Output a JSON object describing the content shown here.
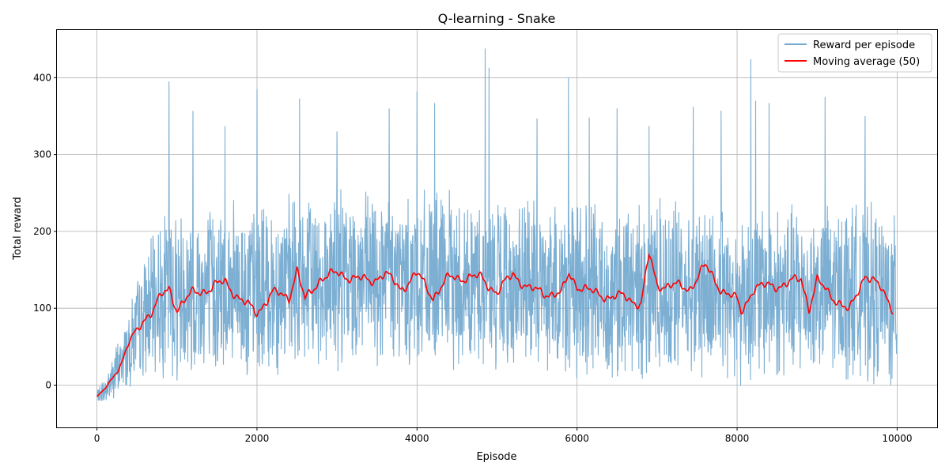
{
  "chart_data": {
    "type": "line",
    "title": "Q-learning - Snake",
    "xlabel": "Episode",
    "ylabel": "Total reward",
    "xlim": [
      -500,
      10500
    ],
    "ylim": [
      -55,
      462
    ],
    "xticks": [
      0,
      2000,
      4000,
      6000,
      8000,
      10000
    ],
    "yticks": [
      0,
      100,
      200,
      300,
      400
    ],
    "xtick_labels": [
      "0",
      "2000",
      "4000",
      "6000",
      "8000",
      "10000"
    ],
    "ytick_labels": [
      "0",
      "100",
      "200",
      "300",
      "400"
    ],
    "grid": true,
    "legend": "top-right",
    "series": [
      {
        "name": "Reward per episode",
        "color": "#76abd1",
        "n_points": 10000,
        "trend": {
          "x": [
            0,
            100,
            200,
            300,
            400,
            500,
            600,
            700,
            800,
            1000,
            1500,
            2000,
            2500,
            3000,
            3500,
            4000,
            4500,
            5000,
            5500,
            6000,
            6500,
            7000,
            7500,
            8000,
            8500,
            9000,
            9500,
            10000
          ],
          "y": [
            -15,
            -8,
            10,
            28,
            50,
            72,
            90,
            105,
            118,
            122,
            125,
            122,
            132,
            140,
            138,
            136,
            134,
            130,
            128,
            126,
            118,
            128,
            125,
            118,
            122,
            118,
            125,
            105
          ]
        },
        "spread": 95,
        "peaks": [
          {
            "x": 900,
            "y": 395
          },
          {
            "x": 1200,
            "y": 357
          },
          {
            "x": 1600,
            "y": 337
          },
          {
            "x": 2000,
            "y": 385
          },
          {
            "x": 2530,
            "y": 373
          },
          {
            "x": 3000,
            "y": 330
          },
          {
            "x": 3650,
            "y": 360
          },
          {
            "x": 4000,
            "y": 382
          },
          {
            "x": 4220,
            "y": 367
          },
          {
            "x": 4850,
            "y": 438
          },
          {
            "x": 4900,
            "y": 413
          },
          {
            "x": 5500,
            "y": 347
          },
          {
            "x": 5890,
            "y": 400
          },
          {
            "x": 6150,
            "y": 348
          },
          {
            "x": 6500,
            "y": 360
          },
          {
            "x": 6900,
            "y": 337
          },
          {
            "x": 7450,
            "y": 362
          },
          {
            "x": 7800,
            "y": 357
          },
          {
            "x": 8170,
            "y": 424
          },
          {
            "x": 8230,
            "y": 370
          },
          {
            "x": 8400,
            "y": 367
          },
          {
            "x": 9100,
            "y": 375
          },
          {
            "x": 9600,
            "y": 350
          }
        ]
      },
      {
        "name": "Moving average (50)",
        "color": "#ff0000",
        "window": 50,
        "x": [
          0,
          100,
          200,
          300,
          400,
          500,
          600,
          700,
          800,
          900,
          1000,
          1200,
          1400,
          1600,
          1800,
          2000,
          2200,
          2400,
          2500,
          2600,
          2800,
          3000,
          3200,
          3400,
          3600,
          3800,
          4000,
          4200,
          4400,
          4600,
          4800,
          5000,
          5200,
          5400,
          5600,
          5800,
          5900,
          6000,
          6200,
          6400,
          6600,
          6800,
          6900,
          7000,
          7200,
          7400,
          7600,
          7800,
          8000,
          8050,
          8200,
          8400,
          8600,
          8800,
          8900,
          9000,
          9200,
          9400,
          9600,
          9800,
          9950
        ],
        "y": [
          -15,
          -5,
          10,
          28,
          55,
          70,
          88,
          98,
          115,
          125,
          100,
          120,
          125,
          135,
          110,
          95,
          120,
          115,
          150,
          110,
          140,
          145,
          140,
          135,
          145,
          125,
          145,
          115,
          140,
          140,
          140,
          120,
          145,
          125,
          120,
          118,
          145,
          130,
          120,
          115,
          115,
          105,
          170,
          130,
          130,
          125,
          155,
          125,
          110,
          95,
          125,
          130,
          130,
          140,
          100,
          135,
          115,
          95,
          145,
          125,
          100
        ]
      }
    ]
  }
}
